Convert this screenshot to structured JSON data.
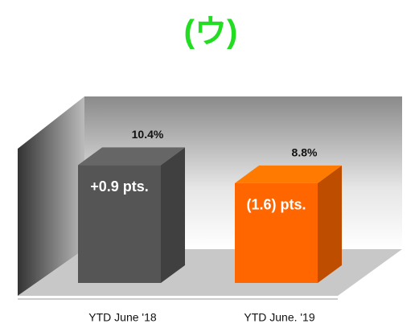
{
  "chart_data": {
    "type": "bar3d",
    "title": "(ウ)",
    "categories": [
      "YTD June '18",
      "YTD June. '19"
    ],
    "values": [
      10.4,
      8.8
    ],
    "value_labels": [
      "10.4%",
      "8.8%"
    ],
    "annotations": [
      "+0.9 pts.",
      "(1.6) pts."
    ],
    "colors": [
      "#555555",
      "#ff6600"
    ]
  }
}
